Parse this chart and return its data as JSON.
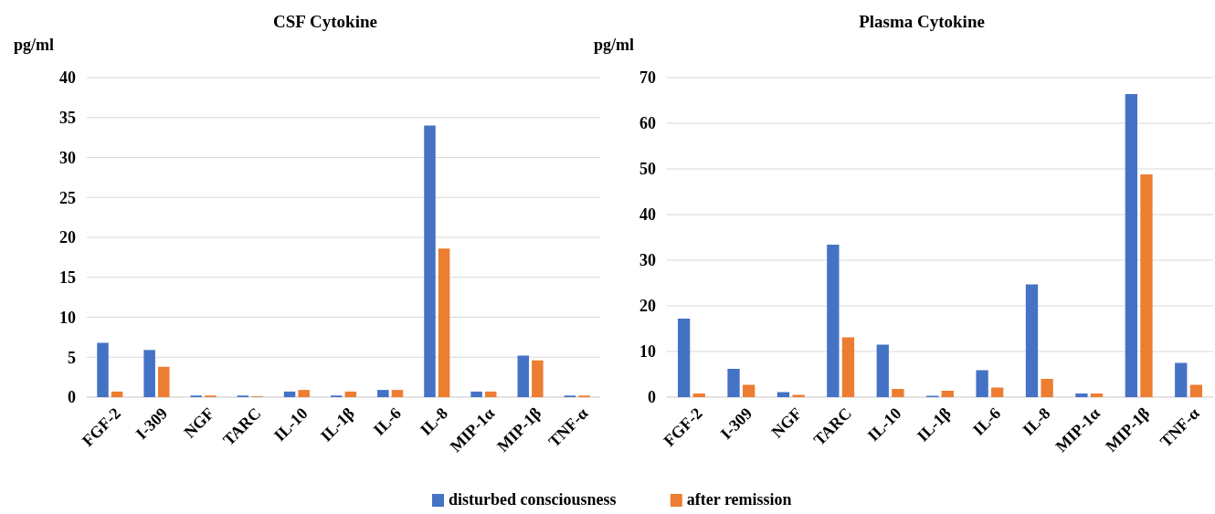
{
  "chart_data": [
    {
      "type": "bar",
      "title": "CSF Cytokine",
      "ylabel": "pg/ml",
      "categories": [
        "FGF-2",
        "I-309",
        "NGF",
        "TARC",
        "IL-10",
        "IL-1β",
        "IL-6",
        "IL-8",
        "MIP-1α",
        "MIP-1β",
        "TNF-α"
      ],
      "series": [
        {
          "name": "disturbed consciousness",
          "color": "#4472c4",
          "values": [
            6.8,
            5.9,
            0.2,
            0.2,
            0.7,
            0.2,
            0.9,
            34,
            0.7,
            5.2,
            0.2
          ]
        },
        {
          "name": "after remission",
          "color": "#ed7d31",
          "values": [
            0.7,
            3.8,
            0.2,
            0.1,
            0.9,
            0.7,
            0.9,
            18.6,
            0.7,
            4.6,
            0.2
          ]
        }
      ],
      "ylim": [
        0,
        40
      ],
      "yticks": [
        0,
        5,
        10,
        15,
        20,
        25,
        30,
        35,
        40
      ],
      "grid": "y",
      "legend": "bottom"
    },
    {
      "type": "bar",
      "title": "Plasma Cytokine",
      "ylabel": "pg/ml",
      "categories": [
        "FGF-2",
        "I-309",
        "NGF",
        "TARC",
        "IL-10",
        "IL-1β",
        "IL-6",
        "IL-8",
        "MIP-1α",
        "MIP-1β",
        "TNF-α"
      ],
      "series": [
        {
          "color": "#4472c4",
          "values": [
            17.2,
            6.2,
            1.1,
            33.4,
            11.5,
            0.3,
            5.9,
            24.7,
            0.8,
            66.4,
            7.5
          ]
        },
        {
          "color": "#ed7d31",
          "values": [
            0.8,
            2.7,
            0.5,
            13.1,
            1.8,
            1.4,
            2.1,
            4.0,
            0.8,
            48.8,
            2.7
          ]
        }
      ],
      "ylim": [
        0,
        70
      ],
      "yticks": [
        0,
        10,
        20,
        30,
        40,
        50,
        60,
        70
      ],
      "grid": "y"
    }
  ]
}
